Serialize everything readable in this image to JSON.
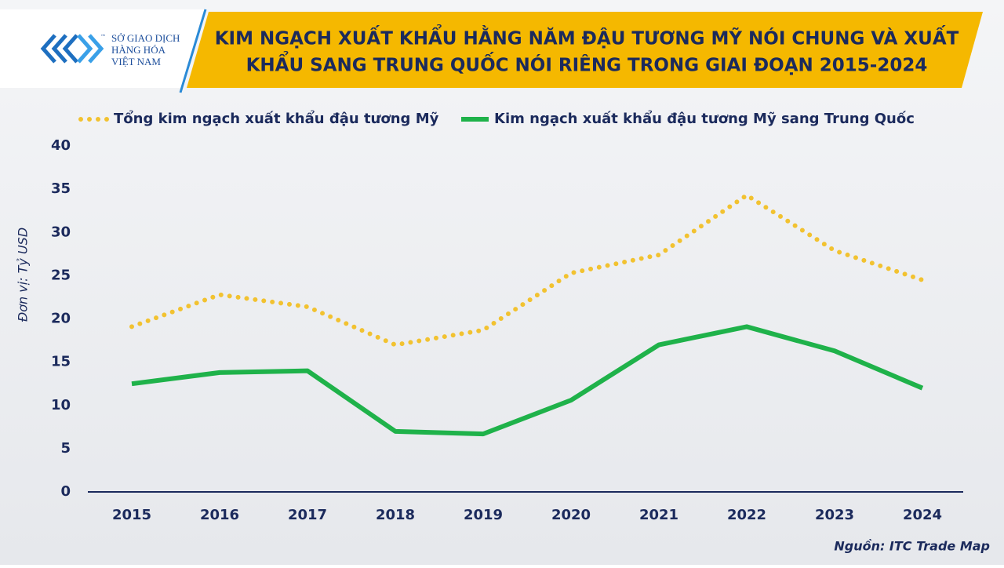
{
  "logo": {
    "lines": [
      "SỞ GIAO DỊCH",
      "HÀNG HÓA",
      "VIỆT NAM"
    ],
    "mark": "™"
  },
  "chart_data": {
    "type": "line",
    "title": [
      "KIM NGẠCH XUẤT KHẨU HẰNG NĂM ĐẬU TƯƠNG MỸ NÓI CHUNG VÀ XUẤT",
      "KHẨU SANG TRUNG QUỐC NÓI RIÊNG TRONG GIAI ĐOẠN 2015-2024"
    ],
    "y_label": "Đơn vị: Tỷ USD",
    "source": "Nguồn: ITC Trade Map",
    "categories": [
      "2015",
      "2016",
      "2017",
      "2018",
      "2019",
      "2020",
      "2021",
      "2022",
      "2023",
      "2024"
    ],
    "series": [
      {
        "name": "Tổng kim ngạch xuất khẩu đậu tương Mỹ",
        "color": "#f2c230",
        "style": "dotted",
        "values": [
          19.1,
          22.8,
          21.4,
          17.0,
          18.7,
          25.3,
          27.4,
          34.3,
          27.9,
          24.5
        ]
      },
      {
        "name": "Kim ngạch xuất khẩu đậu tương Mỹ sang Trung Quốc",
        "color": "#1fb24a",
        "style": "solid",
        "values": [
          12.5,
          13.8,
          14.0,
          7.0,
          6.7,
          10.6,
          17.0,
          19.1,
          16.3,
          12.0
        ]
      }
    ],
    "ylim": [
      0,
      40
    ],
    "yticks": [
      0,
      5,
      10,
      15,
      20,
      25,
      30,
      35,
      40
    ],
    "grid": false
  }
}
